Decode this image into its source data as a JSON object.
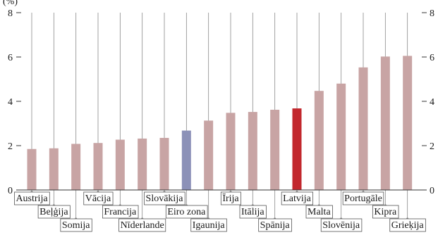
{
  "chart_data": {
    "type": "bar",
    "unit_label": "(%)",
    "categories": [
      "Austrija",
      "Beļģija",
      "Somija",
      "Vācija",
      "Francija",
      "Nīderlande",
      "Slovākija",
      "Eiro zona",
      "Igaunija",
      "Īrija",
      "Itālija",
      "Spānija",
      "Latvija",
      "Malta",
      "Slovēnija",
      "Portugāle",
      "Kipra",
      "Grieķija"
    ],
    "values": [
      1.85,
      1.88,
      2.08,
      2.12,
      2.27,
      2.32,
      2.35,
      2.68,
      3.13,
      3.48,
      3.52,
      3.62,
      3.68,
      4.47,
      4.8,
      5.53,
      6.02,
      6.05
    ],
    "highlight": {
      "Eiro zona": "#8c91b8",
      "Latvija": "#c2272d"
    },
    "bar_color": "#c8a4a4",
    "ylim": [
      0,
      8
    ],
    "yticks": [
      "0",
      "2",
      "4",
      "6",
      "8"
    ],
    "grid": "vertical leader lines"
  }
}
